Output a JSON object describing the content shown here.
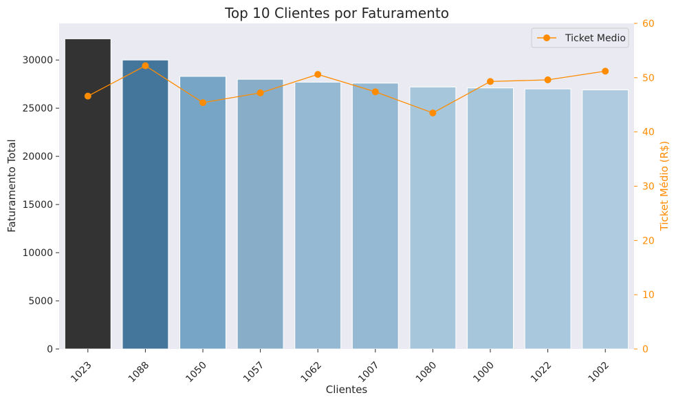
{
  "chart_data": {
    "type": "bar",
    "title": "Top 10 Clientes por Faturamento",
    "xlabel": "Clientes",
    "ylabel": "Faturamento Total",
    "y2label": "Ticket Médio (R$)",
    "categories": [
      "1023",
      "1088",
      "1050",
      "1057",
      "1062",
      "1007",
      "1080",
      "1000",
      "1022",
      "1002"
    ],
    "series": [
      {
        "type": "bar",
        "axis": "left",
        "values": [
          32200,
          30000,
          28300,
          28000,
          27700,
          27600,
          27200,
          27100,
          27000,
          26900
        ],
        "colors": [
          "#333333",
          "#44759a",
          "#77a5c6",
          "#87adc8",
          "#95b9d2",
          "#95b9d2",
          "#a6c6db",
          "#a6c6db",
          "#a9c8dd",
          "#afcbdf"
        ]
      },
      {
        "type": "line",
        "axis": "right",
        "name": "Ticket Medio",
        "values": [
          46.6,
          52.2,
          45.4,
          47.2,
          50.6,
          47.4,
          43.5,
          49.3,
          49.6,
          51.2
        ],
        "color": "#ff8c00"
      }
    ],
    "ylim": [
      0,
      33800
    ],
    "y2lim": [
      0,
      60
    ],
    "yticks": [
      0,
      5000,
      10000,
      15000,
      20000,
      25000,
      30000
    ],
    "y2ticks": [
      0,
      10,
      20,
      30,
      40,
      50,
      60
    ],
    "grid": false,
    "legend_position": "top-right",
    "background": "#eaeaf2"
  }
}
